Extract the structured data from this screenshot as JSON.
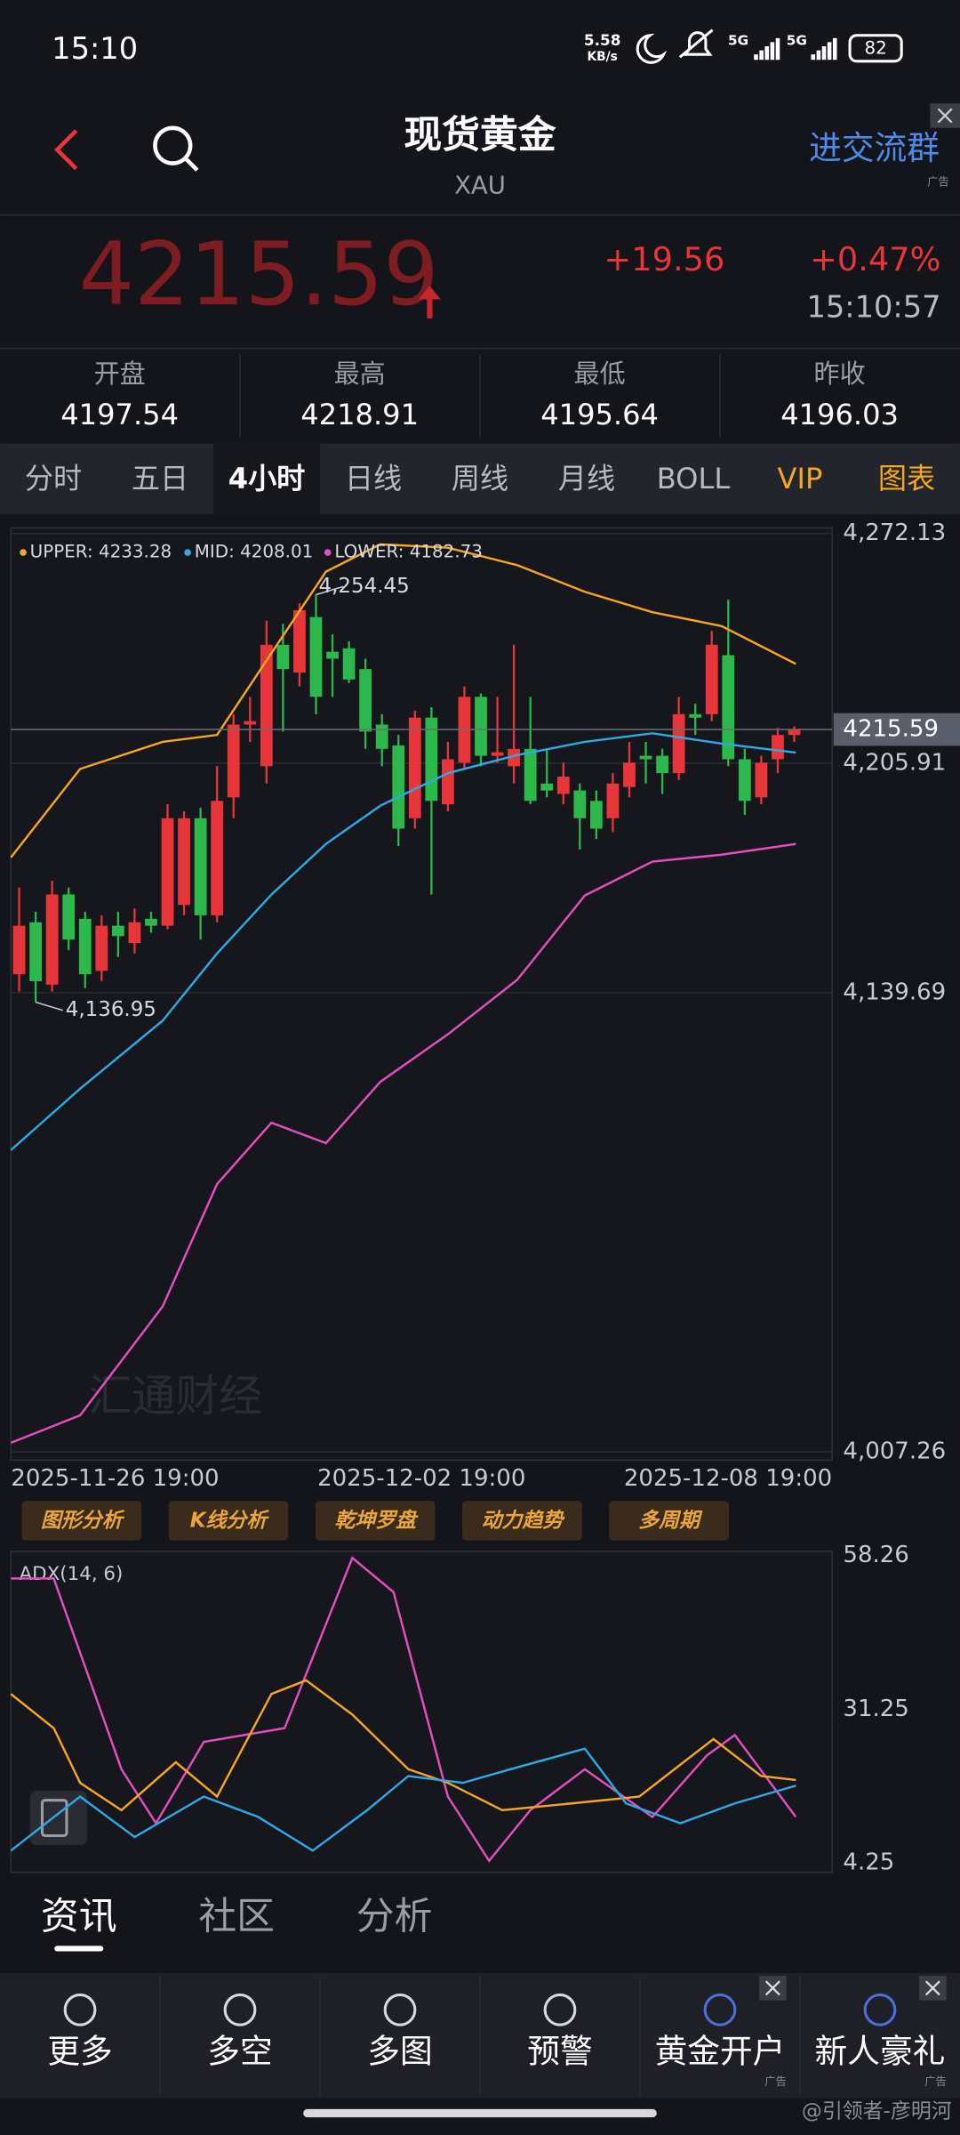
{
  "status_bar": {
    "time": "15:10",
    "net_speed": "5.58",
    "net_unit": "KB/s",
    "signal": "5G",
    "battery": 82
  },
  "header": {
    "title": "现货黄金",
    "symbol": "XAU",
    "ad": "进交流群",
    "ad_tag": "广告"
  },
  "quote": {
    "price": 4215.59,
    "change": "+19.56",
    "change_percent": "+0.47%",
    "time": "15:10:57"
  },
  "stats": [
    {
      "label": "开盘",
      "value": 4197.54
    },
    {
      "label": "最高",
      "value": 4218.91
    },
    {
      "label": "最低",
      "value": 4195.64
    },
    {
      "label": "昨收",
      "value": 4196.03
    }
  ],
  "period_tabs": {
    "items": [
      "分时",
      "五日",
      "4小时",
      "日线",
      "周线",
      "月线",
      "BOLL",
      "VIP",
      "图表"
    ],
    "active": 2
  },
  "chart_data": [
    {
      "type": "candlestick",
      "grid": true,
      "up_color": "#e8353a",
      "down_color": "#2db84b",
      "xlim": [
        -0.5,
        49.3
      ],
      "ylim": [
        4007.26,
        4272.13
      ],
      "yticks": [
        {
          "value": 4272.13,
          "label": "4,272.13"
        },
        {
          "value": 4205.91,
          "label": "4,205.91"
        },
        {
          "value": 4139.69,
          "label": "4,139.69"
        },
        {
          "value": 4007.26,
          "label": "4,007.26"
        }
      ],
      "xticks": [
        {
          "value": 5,
          "label": "2025-11-26 19:00"
        },
        {
          "value": 24.4,
          "label": "2025-12-02 19:00"
        },
        {
          "value": 43.4,
          "label": "2025-12-08 19:00"
        }
      ],
      "last_price": 4215.59,
      "max_annotation": {
        "x": 18,
        "value": 4254.45,
        "label": "4,254.45"
      },
      "min_annotation": {
        "x": 1,
        "value": 4136.95,
        "label": "4,136.95"
      },
      "watermark": "汇通财经",
      "candles": {
        "open": [
          4145,
          4160,
          4142,
          4168,
          4161,
          4146,
          4159,
          4154,
          4161,
          4159,
          4165,
          4190,
          4162,
          4196,
          4217,
          4205,
          4240,
          4232,
          4248,
          4238,
          4239,
          4233,
          4217,
          4211,
          4190,
          4219,
          4194,
          4206,
          4225,
          4208,
          4205,
          4210,
          4200,
          4197,
          4198,
          4195,
          4190,
          4199,
          4208,
          4208,
          4203,
          4220,
          4220,
          4237,
          4207,
          4196,
          4207,
          4214
        ],
        "high": [
          4170,
          4163,
          4172,
          4170,
          4163,
          4162,
          4163,
          4164,
          4163,
          4194,
          4192,
          4193,
          4205,
          4220,
          4225,
          4247,
          4246,
          4252,
          4254.45,
          4243,
          4241,
          4236,
          4220,
          4214,
          4221,
          4222,
          4212,
          4228,
          4226,
          4225,
          4240,
          4225,
          4210,
          4206,
          4200,
          4198,
          4203,
          4212,
          4212,
          4210,
          4225,
          4223,
          4244,
          4253,
          4210,
          4208,
          4216,
          4216.5
        ],
        "low": [
          4140,
          4136.95,
          4140,
          4152,
          4141,
          4143,
          4150,
          4151,
          4157,
          4158,
          4162,
          4155,
          4160,
          4190,
          4212,
          4200,
          4215,
          4228,
          4220,
          4225,
          4229,
          4210,
          4205,
          4182,
          4187,
          4168,
          4192,
          4204,
          4205,
          4206,
          4200,
          4194,
          4196,
          4194,
          4181,
          4184,
          4186,
          4196,
          4200,
          4197,
          4201,
          4214,
          4218,
          4205,
          4191,
          4194,
          4203,
          4212
        ],
        "close": [
          4159,
          4143,
          4168,
          4155,
          4145,
          4159,
          4156,
          4160,
          4159,
          4190,
          4190,
          4162,
          4195,
          4217,
          4218,
          4240,
          4233,
          4250,
          4225,
          4236,
          4230,
          4215,
          4210,
          4187,
          4219,
          4195,
          4207,
          4225,
          4208,
          4209,
          4210,
          4195,
          4198,
          4202,
          4190,
          4187,
          4200,
          4206,
          4207,
          4203,
          4220,
          4219,
          4240,
          4207,
          4195,
          4206,
          4214,
          4215.59
        ]
      },
      "series": [
        {
          "name": "UPPER: 4233.28",
          "color": "#f5a623",
          "x": [
            -0.5,
            3.7,
            8.7,
            12,
            15.3,
            18.6,
            21.9,
            26,
            30.2,
            34.3,
            38.4,
            42.6,
            47.1
          ],
          "values": [
            4178.7,
            4204.2,
            4212,
            4214,
            4237.6,
            4261.1,
            4269,
            4268,
            4263,
            4255.3,
            4249.4,
            4245.4,
            4234.5
          ]
        },
        {
          "name": "MID: 4208.01",
          "color": "#2fa8e6",
          "x": [
            -0.5,
            3.7,
            8.7,
            12,
            15.3,
            18.6,
            21.9,
            26,
            30.2,
            34.3,
            38.4,
            42.6,
            47.1
          ],
          "values": [
            4094.3,
            4112,
            4131.6,
            4151,
            4168,
            4182.6,
            4193.6,
            4203,
            4208.2,
            4212,
            4214.5,
            4211.5,
            4208.9
          ]
        },
        {
          "name": "LOWER: 4182.73",
          "color": "#e24fc0",
          "x": [
            -0.5,
            3.7,
            8.7,
            12,
            15.3,
            18.6,
            21.9,
            26,
            30.2,
            34.3,
            38.4,
            42.6,
            47.1
          ],
          "values": [
            4009.9,
            4017.8,
            4049.2,
            4084.5,
            4102.2,
            4096.3,
            4114,
            4127.7,
            4143.4,
            4167.7,
            4177.5,
            4179.5,
            4182.6
          ]
        }
      ]
    },
    {
      "type": "line",
      "title": "ADX(14, 6)",
      "grid": false,
      "xlim": [
        -0.5,
        49.3
      ],
      "ylim": [
        4.25,
        58.26
      ],
      "yticks": [
        58.26,
        31.25,
        4.25
      ],
      "series": [
        {
          "color": "#e24fc0",
          "x": [
            -0.5,
            2.1,
            6.2,
            8.3,
            11.2,
            16.1,
            20.2,
            22.7,
            26,
            28.5,
            31,
            34.3,
            38.4,
            41.7,
            43.4,
            47.1
          ],
          "values": [
            54.2,
            54.2,
            20.7,
            11.2,
            25.5,
            27.9,
            57.8,
            51.8,
            15.9,
            4.6,
            13.5,
            20.7,
            12.3,
            23.1,
            26.7,
            12.3
          ]
        },
        {
          "color": "#f5a623",
          "x": [
            -0.5,
            2.1,
            3.7,
            6.2,
            9.5,
            12,
            15.3,
            17.4,
            20.2,
            23.6,
            26,
            29.3,
            33.5,
            37.6,
            42.1,
            45,
            47.1
          ],
          "values": [
            33.9,
            27.9,
            18.3,
            13.5,
            21.9,
            15.9,
            33.9,
            36.3,
            30.3,
            20.7,
            18.3,
            13.5,
            14.7,
            15.9,
            26,
            19.5,
            18.8
          ]
        },
        {
          "color": "#2fa8e6",
          "x": [
            -0.5,
            3.7,
            7,
            11.2,
            14.5,
            17.8,
            21.1,
            23.6,
            26.9,
            29.8,
            34.3,
            36.8,
            40.1,
            43.4,
            47.1
          ],
          "values": [
            6.4,
            15.9,
            8.8,
            15.9,
            12.3,
            6.4,
            13.5,
            19.5,
            18.3,
            20.7,
            24.3,
            14.7,
            11.2,
            14.7,
            17.8
          ]
        }
      ]
    }
  ],
  "tool_buttons": [
    "图形分析",
    "K线分析",
    "乾坤罗盘",
    "动力趋势",
    "多周期"
  ],
  "news_tabs": {
    "items": [
      "资讯",
      "社区",
      "分析"
    ],
    "active": 0
  },
  "bottom_nav": {
    "items": [
      "更多",
      "多空",
      "多图",
      "预警",
      "黄金开户",
      "新人豪礼"
    ],
    "ad_tag": "广告"
  },
  "watermark": "@引领者-彦明河"
}
